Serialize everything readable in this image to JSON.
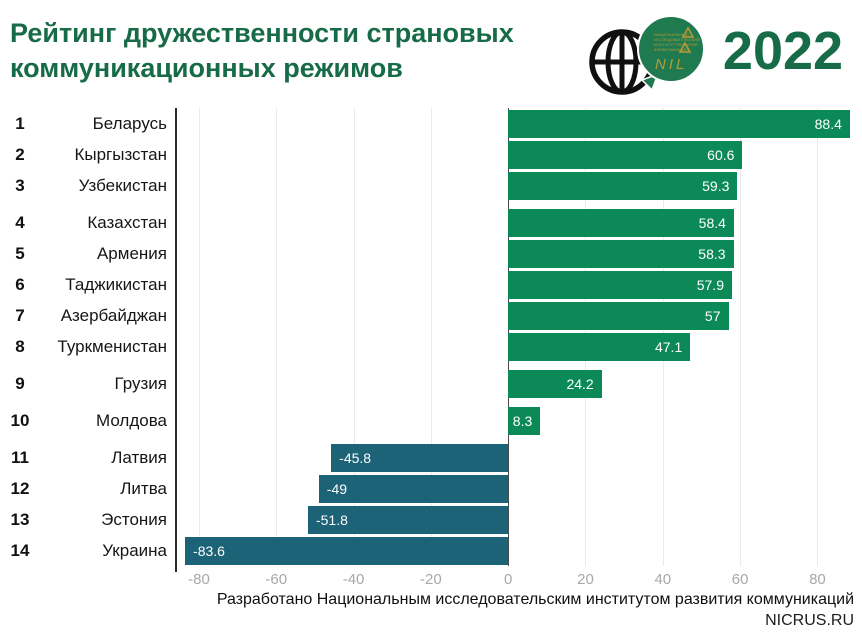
{
  "header": {
    "title_line1": "Рейтинг дружественности страновых",
    "title_line2": "коммуникационных режимов",
    "year": "2022",
    "logo": {
      "bubble_acronym": "NIL",
      "institute_lines": [
        "НАЦИОНАЛЬНЫЙ",
        "ИССЛЕДОВАТЕЛЬСКИЙ",
        "ИНСТИТУТ РАЗВИТИЯ",
        "КОММУНИКАЦИЙ"
      ]
    }
  },
  "colors": {
    "positive_bar": "#0b8a58",
    "negative_bar": "#1d6377",
    "title_green": "#176b48",
    "logo_bubble": "#1f7a50",
    "logo_gold": "#b89a35",
    "axis_label": "#a8a8a8"
  },
  "chart_data": {
    "type": "bar",
    "orientation": "horizontal",
    "title": "Рейтинг дружественности страновых коммуникационных режимов",
    "year": "2022",
    "ranks": [
      "1",
      "2",
      "3",
      "4",
      "5",
      "6",
      "7",
      "8",
      "9",
      "10",
      "11",
      "12",
      "13",
      "14"
    ],
    "categories": [
      "Беларусь",
      "Кыргызстан",
      "Узбекистан",
      "Казахстан",
      "Армения",
      "Таджикистан",
      "Азербайджан",
      "Туркменистан",
      "Грузия",
      "Молдова",
      "Латвия",
      "Литва",
      "Эстония",
      "Украина"
    ],
    "values": [
      88.4,
      60.6,
      59.3,
      58.4,
      58.3,
      57.9,
      57,
      47.1,
      24.2,
      8.3,
      -45.8,
      -49,
      -51.8,
      -83.6
    ],
    "value_labels": [
      "88.4",
      "60.6",
      "59.3",
      "58.4",
      "58.3",
      "57.9",
      "57",
      "47.1",
      "24.2",
      "8.3",
      "-45.8",
      "-49",
      "-51.8",
      "-83.6"
    ],
    "xlim": [
      -86.2,
      90.5
    ],
    "x_ticks": [
      -80,
      -60,
      -40,
      -20,
      0,
      20,
      40,
      60,
      80
    ],
    "x_tick_labels": [
      "-80",
      "-60",
      "-40",
      "-20",
      "0",
      "20",
      "40",
      "60",
      "80"
    ],
    "grid": true,
    "legend": false
  },
  "footer": {
    "credit": "Разработано Национальным исследовательским институтом развития коммуникаций",
    "site": "NICRUS.RU"
  }
}
